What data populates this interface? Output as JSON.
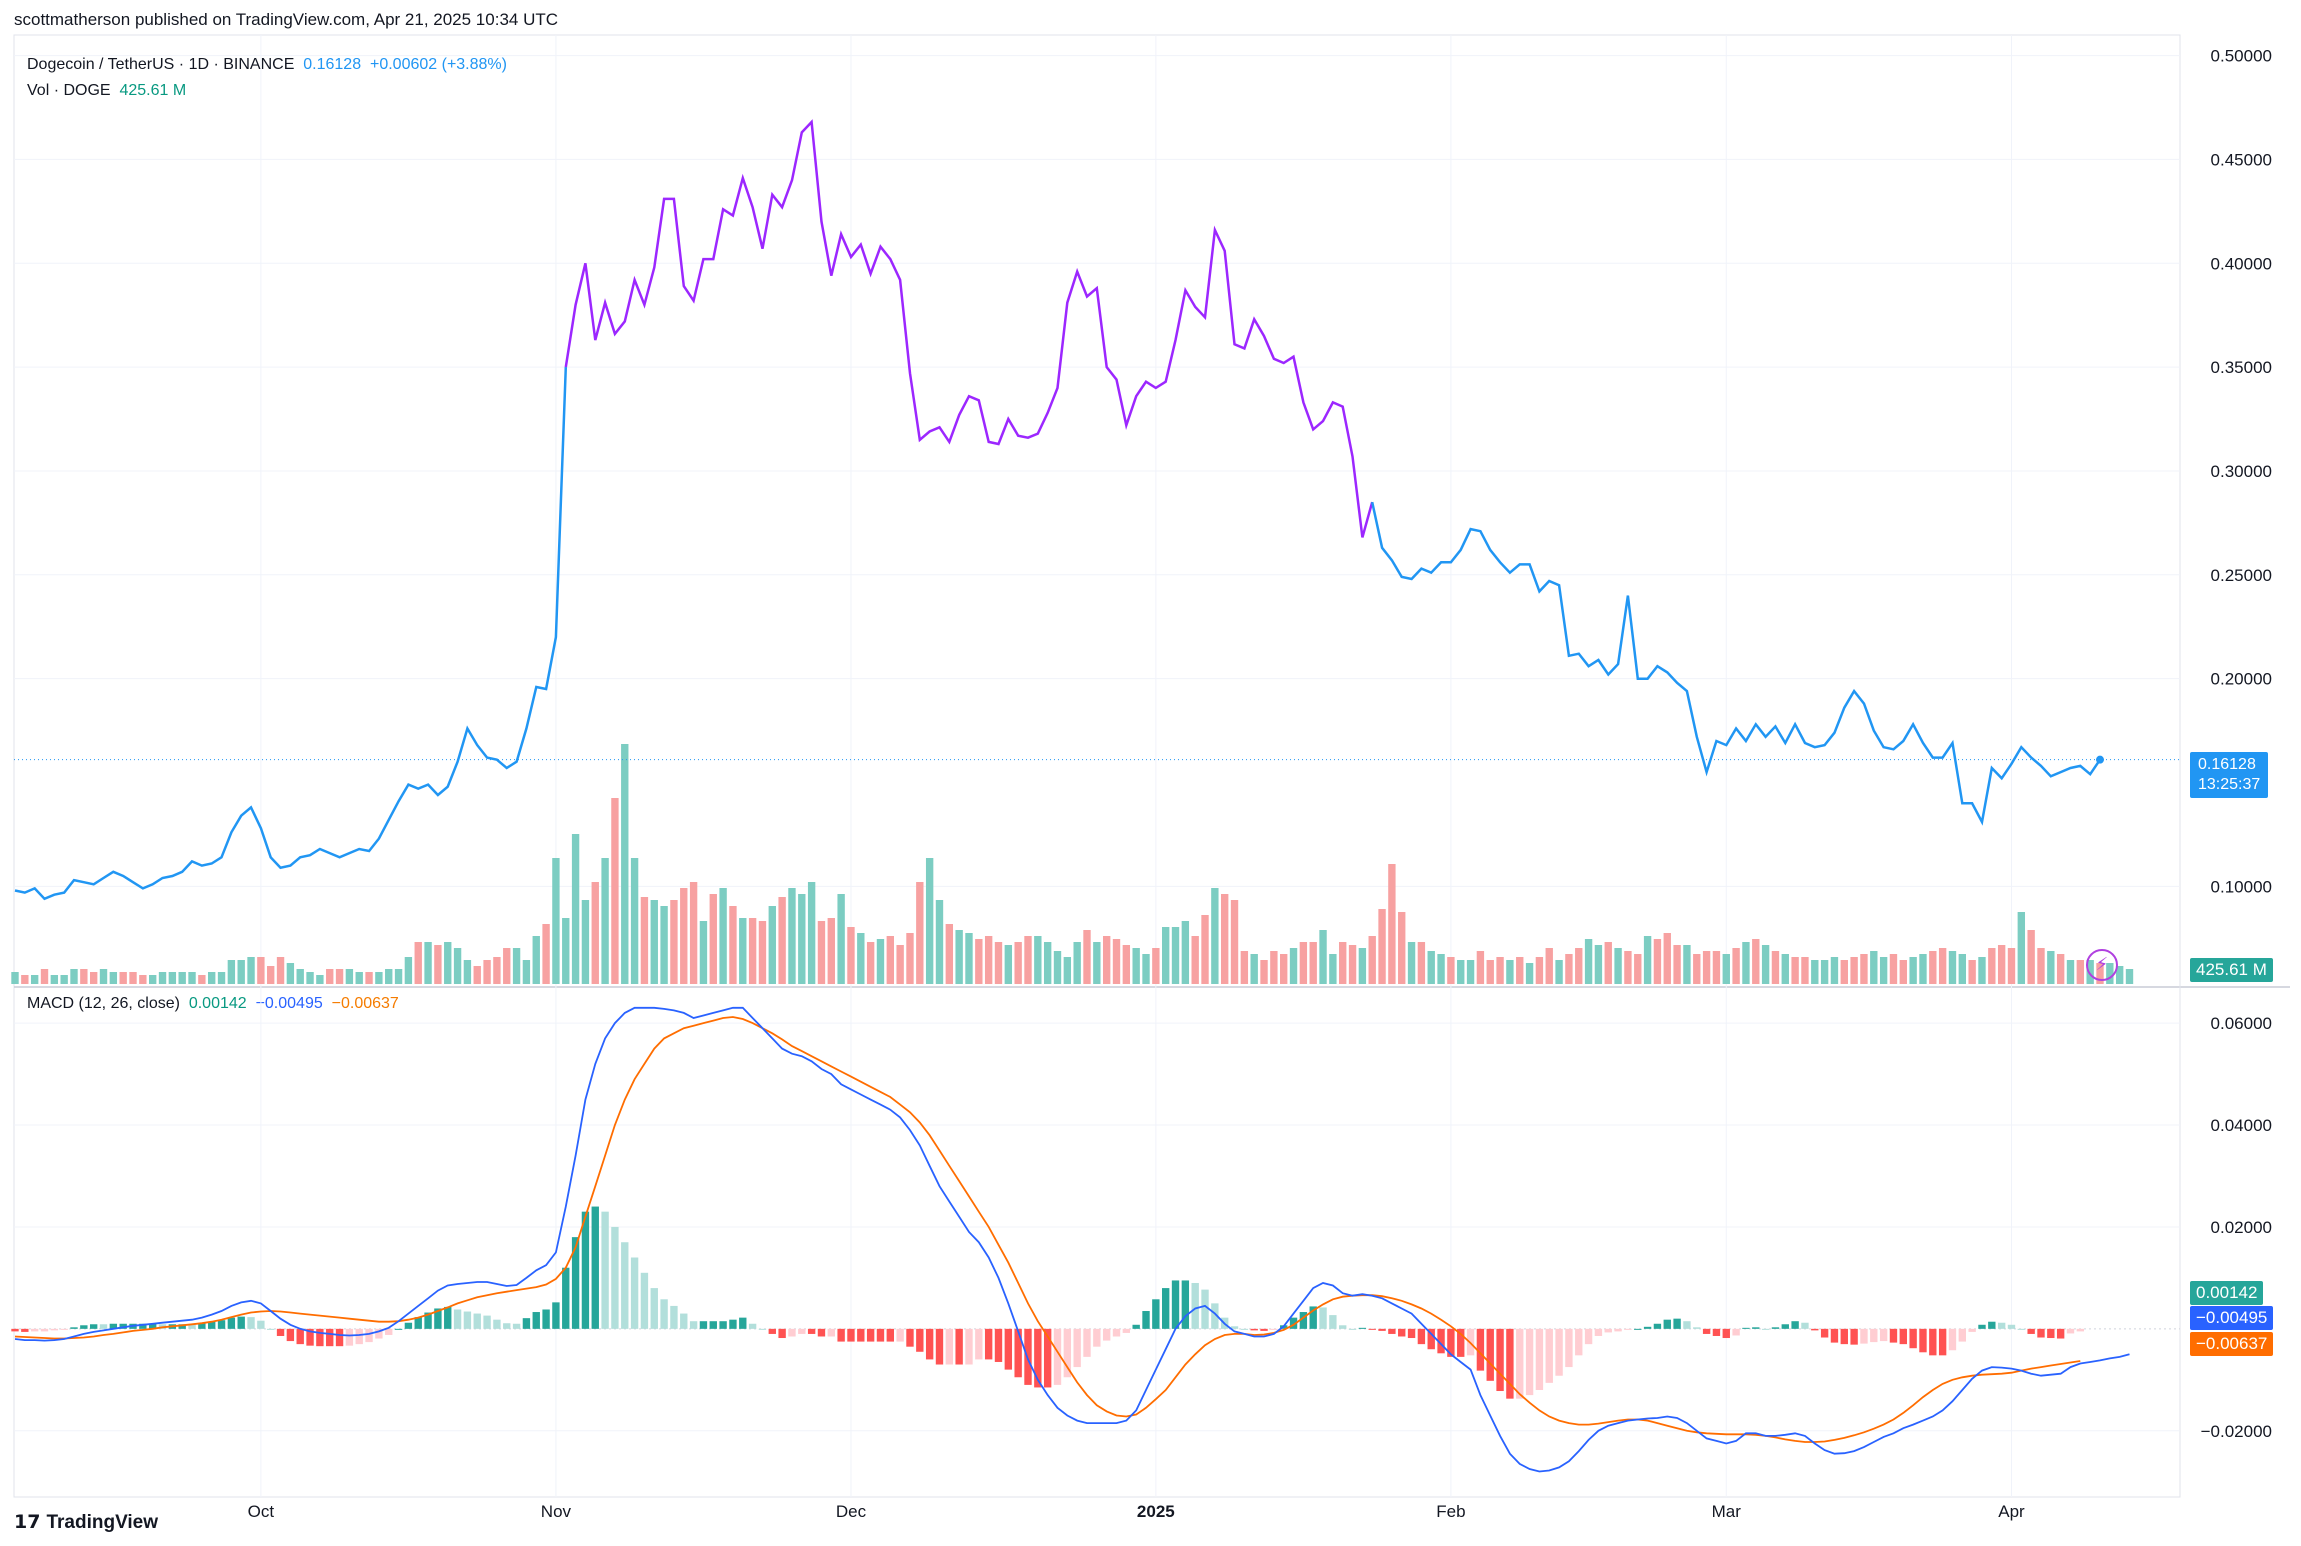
{
  "header": {
    "published": "scottmatherson published on TradingView.com, Apr 21, 2025 10:34 UTC"
  },
  "legend": {
    "symbol": "Dogecoin / TetherUS · 1D · BINANCE",
    "price": "0.16128",
    "change": "+0.00602 (+3.88%)",
    "vol_label": "Vol · DOGE",
    "vol_value": "425.61 M"
  },
  "macd_legend": {
    "label": "MACD (12, 26, close)",
    "hist": "0.00142",
    "macd": "−0.00495",
    "signal": "−0.00637"
  },
  "price_tag": {
    "price": "0.16128",
    "countdown": "13:25:37"
  },
  "volume_tag": "425.61 M",
  "macd_tags": {
    "hist": "0.00142",
    "macd": "−0.00495",
    "signal": "−0.00637"
  },
  "brand": {
    "logo": "17",
    "name": "TradingView"
  },
  "colors": {
    "price_blue": "#2196f3",
    "price_purple": "#9c27ff",
    "vol_up": "#7ccdc2",
    "vol_down": "#f7a1a1",
    "macd_line": "#2962ff",
    "signal_line": "#ff6d00",
    "hist_up_strong": "#26a69a",
    "hist_up_weak": "#b2dfdb",
    "hist_down_strong": "#ff5252",
    "hist_down_weak": "#ffcdd2"
  },
  "chart_data": [
    {
      "type": "line",
      "title": "",
      "ylabel": "",
      "yticks": [
        "0.50000",
        "0.45000",
        "0.40000",
        "0.35000",
        "0.30000",
        "0.25000",
        "0.20000",
        "0.10000"
      ],
      "ytick_values": [
        0.5,
        0.45,
        0.4,
        0.35,
        0.3,
        0.25,
        0.2,
        0.1
      ],
      "ylim": [
        0.0525,
        0.5075
      ],
      "x_labels": [
        "Oct",
        "Nov",
        "Dec",
        "2025",
        "Feb",
        "Mar",
        "Apr"
      ],
      "series": [
        {
          "values": [
            0.098,
            0.097,
            0.099,
            0.094,
            0.096,
            0.097,
            0.103,
            0.102,
            0.101,
            0.104,
            0.107,
            0.105,
            0.102,
            0.099,
            0.101,
            0.104,
            0.105,
            0.107,
            0.112,
            0.11,
            0.111,
            0.114,
            0.126,
            0.134,
            0.138,
            0.128,
            0.114,
            0.109,
            0.11,
            0.114,
            0.115,
            0.118,
            0.116,
            0.114,
            0.116,
            0.118,
            0.117,
            0.123,
            0.132,
            0.141,
            0.149,
            0.147,
            0.149,
            0.144,
            0.148,
            0.16,
            0.176,
            0.168,
            0.162,
            0.161,
            0.157,
            0.16,
            0.176,
            0.196,
            0.195,
            0.22,
            0.35,
            0.38,
            0.4,
            0.363,
            0.381,
            0.366,
            0.372,
            0.392,
            0.38,
            0.398,
            0.431,
            0.431,
            0.389,
            0.382,
            0.402,
            0.402,
            0.426,
            0.423,
            0.441,
            0.427,
            0.407,
            0.433,
            0.427,
            0.44,
            0.463,
            0.468,
            0.42,
            0.394,
            0.414,
            0.403,
            0.409,
            0.395,
            0.408,
            0.402,
            0.392,
            0.347,
            0.315,
            0.319,
            0.321,
            0.314,
            0.327,
            0.336,
            0.334,
            0.314,
            0.313,
            0.325,
            0.317,
            0.316,
            0.318,
            0.328,
            0.34,
            0.381,
            0.396,
            0.384,
            0.388,
            0.35,
            0.344,
            0.322,
            0.336,
            0.343,
            0.34,
            0.343,
            0.363,
            0.387,
            0.379,
            0.374,
            0.416,
            0.406,
            0.361,
            0.359,
            0.373,
            0.365,
            0.354,
            0.352,
            0.355,
            0.333,
            0.32,
            0.324,
            0.333,
            0.331,
            0.307,
            0.268,
            0.285,
            0.263,
            0.257,
            0.249,
            0.248,
            0.253,
            0.251,
            0.256,
            0.256,
            0.262,
            0.272,
            0.271,
            0.262,
            0.256,
            0.251,
            0.255,
            0.255,
            0.242,
            0.247,
            0.245,
            0.211,
            0.212,
            0.206,
            0.209,
            0.202,
            0.207,
            0.24,
            0.2,
            0.2,
            0.206,
            0.203,
            0.198,
            0.194,
            0.172,
            0.155,
            0.17,
            0.168,
            0.176,
            0.17,
            0.178,
            0.172,
            0.177,
            0.169,
            0.178,
            0.169,
            0.167,
            0.168,
            0.174,
            0.186,
            0.194,
            0.188,
            0.175,
            0.167,
            0.166,
            0.17,
            0.178,
            0.169,
            0.162,
            0.162,
            0.169,
            0.14,
            0.14,
            0.131,
            0.157,
            0.152,
            0.159,
            0.167,
            0.162,
            0.158,
            0.153,
            0.155,
            0.157,
            0.158,
            0.154,
            0.161
          ]
        }
      ],
      "volume": {
        "values": [
          4,
          3,
          3,
          5,
          3,
          3,
          5,
          5,
          4,
          5,
          4,
          4,
          4,
          3,
          3,
          4,
          4,
          4,
          4,
          3,
          4,
          4,
          8,
          8,
          9,
          9,
          6,
          9,
          7,
          5,
          4,
          3,
          5,
          5,
          5,
          4,
          4,
          4,
          5,
          5,
          9,
          14,
          14,
          13,
          14,
          12,
          8,
          6,
          8,
          9,
          12,
          12,
          8,
          16,
          20,
          42,
          22,
          50,
          28,
          34,
          42,
          62,
          80,
          42,
          29,
          28,
          26,
          28,
          32,
          34,
          21,
          30,
          32,
          26,
          22,
          22,
          21,
          26,
          29,
          32,
          30,
          34,
          21,
          22,
          30,
          19,
          17,
          14,
          15,
          16,
          13,
          17,
          34,
          42,
          28,
          20,
          18,
          17,
          15,
          16,
          14,
          13,
          14,
          16,
          16,
          14,
          11,
          9,
          14,
          18,
          14,
          16,
          15,
          13,
          12,
          10,
          12,
          19,
          19,
          21,
          16,
          23,
          32,
          30,
          28,
          11,
          10,
          8,
          11,
          10,
          12,
          14,
          14,
          18,
          10,
          14,
          13,
          12,
          16,
          25,
          40,
          24,
          14,
          14,
          11,
          10,
          9,
          8,
          8,
          11,
          8,
          9,
          8,
          9,
          7,
          9,
          12,
          8,
          10,
          12,
          15,
          13,
          14,
          12,
          11,
          10,
          16,
          15,
          17,
          13,
          13,
          10,
          11,
          11,
          10,
          12,
          14,
          15,
          13,
          11,
          10,
          9,
          9,
          8,
          8,
          9,
          8,
          9,
          10,
          11,
          9,
          10,
          8,
          9,
          10,
          11,
          12,
          11,
          10,
          8,
          9,
          12,
          13,
          12,
          24,
          18,
          12,
          11,
          10,
          8,
          8,
          8,
          7,
          7,
          6,
          5
        ],
        "up": [
          1,
          0,
          1,
          0,
          1,
          1,
          1,
          0,
          0,
          1,
          1,
          0,
          0,
          0,
          1,
          1,
          1,
          1,
          1,
          0,
          1,
          1,
          1,
          1,
          1,
          0,
          0,
          0,
          1,
          1,
          1,
          1,
          0,
          0,
          1,
          1,
          0,
          1,
          1,
          1,
          1,
          0,
          1,
          0,
          1,
          1,
          1,
          0,
          0,
          0,
          0,
          1,
          1,
          1,
          0,
          1,
          1,
          1,
          1,
          0,
          1,
          0,
          1,
          1,
          0,
          1,
          1,
          0,
          0,
          0,
          1,
          0,
          1,
          0,
          1,
          0,
          0,
          1,
          0,
          1,
          1,
          1,
          0,
          0,
          1,
          0,
          1,
          0,
          1,
          0,
          0,
          0,
          0,
          1,
          1,
          0,
          1,
          1,
          0,
          0,
          0,
          1,
          0,
          0,
          1,
          1,
          1,
          1,
          1,
          0,
          1,
          0,
          0,
          0,
          1,
          1,
          0,
          1,
          1,
          1,
          0,
          0,
          1,
          0,
          0,
          0,
          1,
          0,
          0,
          0,
          1,
          0,
          0,
          1,
          1,
          0,
          0,
          1,
          0,
          0,
          0,
          0,
          1,
          0,
          1,
          1,
          0,
          1,
          1,
          0,
          0,
          0,
          1,
          0,
          1,
          0,
          0,
          1,
          0,
          0,
          1,
          1,
          0,
          1,
          0,
          0,
          1,
          0,
          0,
          0,
          1,
          0,
          0,
          0,
          1,
          0,
          1,
          0,
          1,
          0,
          1,
          0,
          0,
          1,
          1,
          1,
          0,
          0,
          0,
          1,
          1,
          0,
          0,
          1,
          1,
          0,
          0,
          1,
          1,
          0,
          1,
          0,
          0,
          0,
          1,
          0,
          0,
          1,
          0,
          1,
          0,
          1,
          0,
          1,
          1,
          1,
          0,
          0,
          0
        ]
      }
    },
    {
      "type": "bar",
      "title": "MACD (12, 26, close)",
      "yticks": [
        "0.06000",
        "0.04000",
        "0.02000",
        "−0.02000"
      ],
      "ytick_values": [
        0.06,
        0.04,
        0.02,
        -0.02
      ],
      "ylim": [
        -0.033,
        0.0665
      ],
      "macd": [
        -0.002,
        -0.0022,
        -0.0022,
        -0.0023,
        -0.0022,
        -0.002,
        -0.0015,
        -0.001,
        -0.0006,
        -0.0003,
        0,
        0.0003,
        0.0006,
        0.0008,
        0.001,
        0.0012,
        0.0014,
        0.0016,
        0.0018,
        0.0022,
        0.0028,
        0.0035,
        0.0045,
        0.0052,
        0.0055,
        0.005,
        0.0035,
        0.002,
        0.0008,
        0,
        -0.0005,
        -0.0008,
        -0.001,
        -0.0012,
        -0.0013,
        -0.0012,
        -0.001,
        -0.0005,
        0.0002,
        0.0015,
        0.003,
        0.0045,
        0.006,
        0.0075,
        0.0085,
        0.0088,
        0.009,
        0.0092,
        0.0092,
        0.0088,
        0.0084,
        0.0086,
        0.01,
        0.0115,
        0.0125,
        0.015,
        0.024,
        0.034,
        0.045,
        0.052,
        0.057,
        0.06,
        0.062,
        0.063,
        0.063,
        0.063,
        0.0628,
        0.0625,
        0.062,
        0.061,
        0.0615,
        0.062,
        0.0625,
        0.063,
        0.063,
        0.061,
        0.059,
        0.057,
        0.055,
        0.054,
        0.0535,
        0.0525,
        0.051,
        0.05,
        0.048,
        0.047,
        0.046,
        0.045,
        0.044,
        0.043,
        0.0415,
        0.039,
        0.036,
        0.032,
        0.028,
        0.025,
        0.022,
        0.019,
        0.017,
        0.014,
        0.01,
        0.005,
        -0.0005,
        -0.006,
        -0.01,
        -0.013,
        -0.0155,
        -0.017,
        -0.018,
        -0.0185,
        -0.0185,
        -0.0185,
        -0.0185,
        -0.018,
        -0.016,
        -0.012,
        -0.008,
        -0.004,
        0,
        0.0025,
        0.004,
        0.0045,
        0.003,
        0.001,
        -0.0005,
        -0.001,
        -0.0015,
        -0.0015,
        -0.001,
        0.0005,
        0.003,
        0.0055,
        0.008,
        0.009,
        0.0085,
        0.007,
        0.0065,
        0.0068,
        0.0065,
        0.006,
        0.005,
        0.004,
        0.003,
        0.001,
        -0.001,
        -0.003,
        -0.005,
        -0.0065,
        -0.008,
        -0.013,
        -0.017,
        -0.021,
        -0.0245,
        -0.0265,
        -0.0275,
        -0.028,
        -0.0278,
        -0.0272,
        -0.026,
        -0.024,
        -0.0218,
        -0.02,
        -0.019,
        -0.0185,
        -0.018,
        -0.0178,
        -0.0176,
        -0.0175,
        -0.0172,
        -0.0175,
        -0.0185,
        -0.02,
        -0.0215,
        -0.022,
        -0.0225,
        -0.022,
        -0.0205,
        -0.0205,
        -0.021,
        -0.021,
        -0.0208,
        -0.0205,
        -0.021,
        -0.0225,
        -0.0238,
        -0.0245,
        -0.0244,
        -0.024,
        -0.0232,
        -0.0222,
        -0.0212,
        -0.0205,
        -0.0195,
        -0.0188,
        -0.018,
        -0.0172,
        -0.016,
        -0.0142,
        -0.012,
        -0.0098,
        -0.0082,
        -0.0075,
        -0.0076,
        -0.0078,
        -0.0082,
        -0.0088,
        -0.0092,
        -0.009,
        -0.0088,
        -0.0075,
        -0.0068,
        -0.0065,
        -0.0062,
        -0.0058,
        -0.0055,
        -0.005
      ],
      "signal": [
        -0.0015,
        -0.0016,
        -0.0017,
        -0.0018,
        -0.0019,
        -0.0019,
        -0.0018,
        -0.0017,
        -0.0015,
        -0.0012,
        -0.001,
        -0.0007,
        -0.0004,
        -0.0002,
        0,
        0.0003,
        0.0005,
        0.0007,
        0.0009,
        0.0011,
        0.0014,
        0.0018,
        0.0023,
        0.0028,
        0.0032,
        0.0034,
        0.0035,
        0.0034,
        0.0032,
        0.003,
        0.0028,
        0.0026,
        0.0024,
        0.0022,
        0.002,
        0.0018,
        0.0016,
        0.0014,
        0.0014,
        0.0015,
        0.0018,
        0.0022,
        0.0028,
        0.0035,
        0.0042,
        0.005,
        0.0056,
        0.0062,
        0.0066,
        0.007,
        0.0073,
        0.0076,
        0.0079,
        0.0082,
        0.0087,
        0.0098,
        0.012,
        0.016,
        0.022,
        0.028,
        0.034,
        0.04,
        0.045,
        0.049,
        0.052,
        0.055,
        0.057,
        0.058,
        0.059,
        0.0595,
        0.06,
        0.0605,
        0.061,
        0.0612,
        0.0608,
        0.06,
        0.059,
        0.058,
        0.0568,
        0.0555,
        0.0545,
        0.0535,
        0.0525,
        0.0515,
        0.0505,
        0.0495,
        0.0485,
        0.0475,
        0.0465,
        0.0455,
        0.044,
        0.0425,
        0.0405,
        0.038,
        0.035,
        0.032,
        0.029,
        0.026,
        0.023,
        0.02,
        0.0165,
        0.013,
        0.009,
        0.005,
        0.0015,
        -0.0015,
        -0.0045,
        -0.0075,
        -0.0105,
        -0.013,
        -0.015,
        -0.0162,
        -0.017,
        -0.0172,
        -0.0168,
        -0.0155,
        -0.0138,
        -0.012,
        -0.0095,
        -0.007,
        -0.005,
        -0.0032,
        -0.002,
        -0.0012,
        -0.001,
        -0.001,
        -0.0012,
        -0.0011,
        -0.0008,
        -0.0002,
        0.0008,
        0.0022,
        0.0036,
        0.0048,
        0.0058,
        0.0063,
        0.0065,
        0.0066,
        0.0066,
        0.0064,
        0.006,
        0.0055,
        0.0048,
        0.004,
        0.003,
        0.0018,
        0.0005,
        -0.001,
        -0.0028,
        -0.0048,
        -0.0068,
        -0.0088,
        -0.0108,
        -0.0128,
        -0.0145,
        -0.016,
        -0.0172,
        -0.018,
        -0.0185,
        -0.0188,
        -0.0188,
        -0.0186,
        -0.0183,
        -0.018,
        -0.0178,
        -0.0178,
        -0.018,
        -0.0185,
        -0.019,
        -0.0195,
        -0.02,
        -0.0203,
        -0.0205,
        -0.0206,
        -0.0207,
        -0.0207,
        -0.0207,
        -0.0208,
        -0.021,
        -0.0213,
        -0.0217,
        -0.022,
        -0.0222,
        -0.0222,
        -0.0221,
        -0.0218,
        -0.0214,
        -0.0209,
        -0.0203,
        -0.0196,
        -0.0188,
        -0.0178,
        -0.0165,
        -0.015,
        -0.0134,
        -0.012,
        -0.0108,
        -0.01,
        -0.0095,
        -0.0092,
        -0.009,
        -0.0089,
        -0.0088,
        -0.0086,
        -0.0082,
        -0.0078,
        -0.0075,
        -0.0072,
        -0.0069,
        -0.0066,
        -0.0063
      ]
    }
  ]
}
